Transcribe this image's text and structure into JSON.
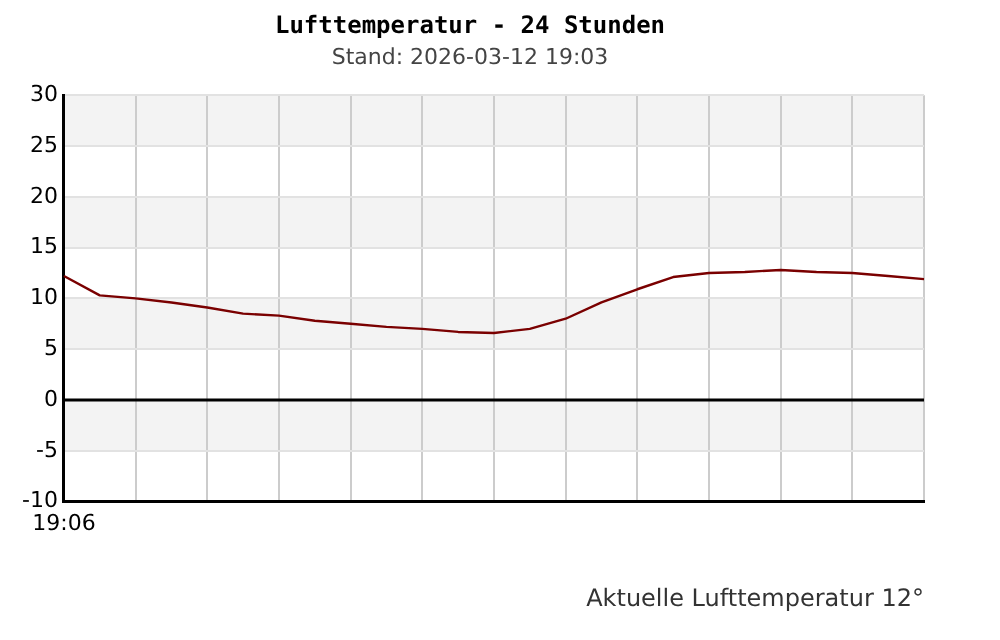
{
  "chart_data": {
    "type": "line",
    "title": "Lufttemperatur - 24 Stunden",
    "subtitle": "Stand: 2026-03-12 19:03",
    "categories": [
      null,
      null,
      null,
      null,
      null,
      null,
      null,
      null,
      null,
      null,
      null,
      null,
      null,
      null,
      null,
      null,
      null,
      null,
      null,
      null,
      null,
      null,
      null,
      null,
      null
    ],
    "series": [
      {
        "color": "#7a0000",
        "values": [
          12.2,
          10.3,
          10.0,
          9.6,
          9.1,
          8.5,
          8.3,
          7.8,
          7.5,
          7.2,
          7.0,
          6.7,
          6.6,
          7.0,
          8.0,
          9.6,
          10.9,
          12.1,
          12.5,
          12.6,
          12.8,
          12.6,
          12.5,
          12.2,
          11.9
        ]
      }
    ],
    "ylim": [
      -10,
      30
    ],
    "yticks": [
      -10,
      -5,
      0,
      5,
      10,
      15,
      20,
      25,
      30
    ],
    "grid": true,
    "legend": false,
    "marker": "none",
    "line_style": "solid",
    "bands": [
      {
        "axis": "y",
        "from": 25,
        "to": 30,
        "color": "#f3f3f3"
      },
      {
        "axis": "y",
        "from": 15,
        "to": 20,
        "color": "#f3f3f3"
      },
      {
        "axis": "y",
        "from": 5,
        "to": 10,
        "color": "#f3f3f3"
      },
      {
        "axis": "y",
        "from": -5,
        "to": 0,
        "color": "#f3f3f3"
      }
    ],
    "ref_lines": [
      {
        "axis": "y",
        "value": 0,
        "color": "#000000"
      }
    ],
    "annotations": [
      "19:06",
      "Aktuelle Lufttemperatur 12°"
    ]
  }
}
